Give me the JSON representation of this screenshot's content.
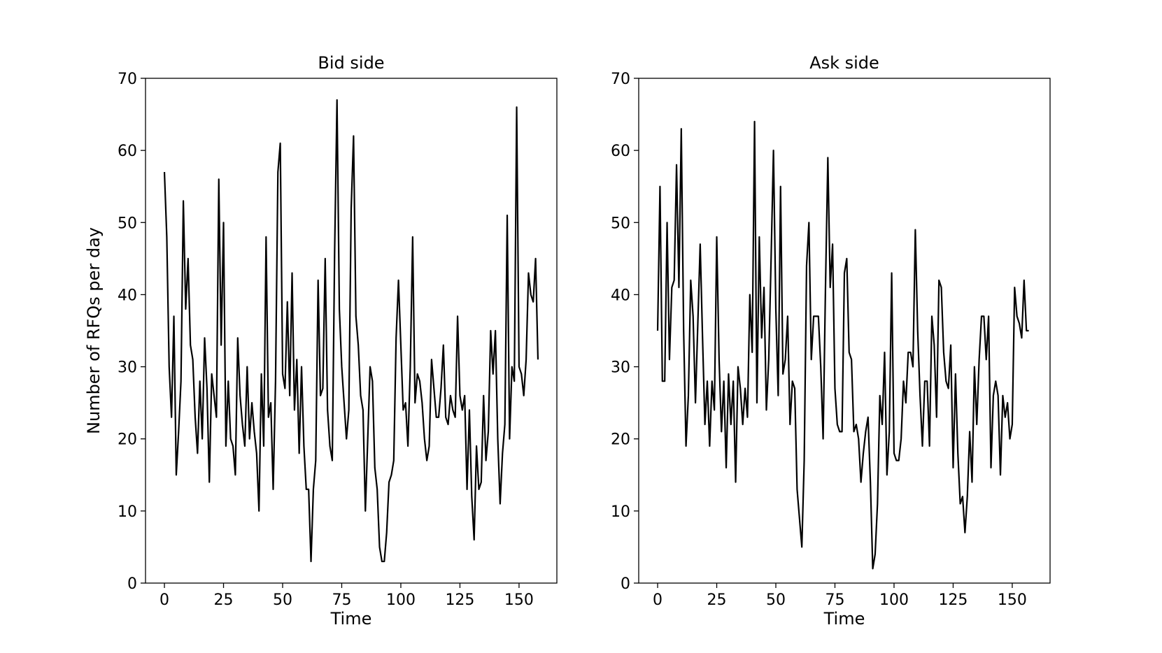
{
  "chart_data": [
    {
      "type": "line",
      "title": "Bid side",
      "xlabel": "Time",
      "ylabel": "Number of RFQs per day",
      "xlim": [
        -8,
        166
      ],
      "ylim": [
        0,
        70
      ],
      "xticks": [
        0,
        25,
        50,
        75,
        100,
        125,
        150
      ],
      "yticks": [
        0,
        10,
        20,
        30,
        40,
        50,
        60,
        70
      ],
      "grid": false,
      "color": "#000000",
      "series": [
        {
          "x_start": 0,
          "values": [
            57,
            48,
            30,
            23,
            37,
            15,
            21,
            28,
            53,
            38,
            45,
            33,
            31,
            23,
            18,
            28,
            20,
            34,
            27,
            14,
            29,
            26,
            23,
            56,
            33,
            50,
            19,
            28,
            20,
            19,
            15,
            34,
            26,
            22,
            19,
            30,
            20,
            25,
            21,
            18,
            10,
            29,
            19,
            48,
            23,
            25,
            13,
            28,
            57,
            61,
            29,
            27,
            39,
            26,
            43,
            24,
            31,
            18,
            30,
            19,
            13,
            13,
            3,
            13,
            17,
            42,
            26,
            27,
            45,
            24,
            19,
            17,
            46,
            67,
            38,
            30,
            25,
            20,
            24,
            52,
            62,
            37,
            33,
            26,
            24,
            10,
            20,
            30,
            28,
            16,
            13,
            5,
            3,
            3,
            7,
            14,
            15,
            17,
            34,
            42,
            33,
            24,
            25,
            19,
            30,
            48,
            25,
            29,
            28,
            25,
            20,
            17,
            19,
            31,
            27,
            23,
            23,
            27,
            33,
            23,
            22,
            26,
            24,
            23,
            37,
            26,
            24,
            26,
            13,
            24,
            12,
            6,
            19,
            13,
            14,
            26,
            17,
            21,
            35,
            29,
            35,
            20,
            11,
            18,
            22,
            51,
            20,
            30,
            28,
            66,
            30,
            29,
            26,
            31,
            43,
            40,
            39,
            45,
            31
          ]
        }
      ]
    },
    {
      "type": "line",
      "title": "Ask side",
      "xlabel": "Time",
      "ylabel": "",
      "xlim": [
        -8,
        166
      ],
      "ylim": [
        0,
        70
      ],
      "xticks": [
        0,
        25,
        50,
        75,
        100,
        125,
        150
      ],
      "yticks": [
        0,
        10,
        20,
        30,
        40,
        50,
        60,
        70
      ],
      "grid": false,
      "color": "#000000",
      "series": [
        {
          "x_start": 0,
          "values": [
            35,
            55,
            28,
            28,
            50,
            31,
            41,
            42,
            58,
            41,
            63,
            35,
            19,
            26,
            42,
            37,
            25,
            36,
            47,
            34,
            22,
            28,
            19,
            28,
            24,
            48,
            31,
            21,
            28,
            16,
            29,
            22,
            28,
            14,
            30,
            27,
            22,
            27,
            23,
            40,
            32,
            64,
            25,
            48,
            34,
            41,
            24,
            31,
            45,
            60,
            38,
            26,
            55,
            29,
            31,
            37,
            22,
            28,
            27,
            13,
            9,
            5,
            17,
            44,
            50,
            31,
            37,
            37,
            37,
            30,
            20,
            41,
            59,
            41,
            47,
            27,
            22,
            21,
            21,
            43,
            45,
            32,
            31,
            21,
            22,
            20,
            14,
            18,
            21,
            23,
            14,
            2,
            4,
            11,
            26,
            22,
            32,
            15,
            21,
            43,
            18,
            17,
            17,
            20,
            28,
            25,
            32,
            32,
            30,
            49,
            35,
            26,
            19,
            28,
            28,
            19,
            37,
            33,
            23,
            42,
            41,
            32,
            28,
            27,
            33,
            16,
            29,
            18,
            11,
            12,
            7,
            12,
            21,
            14,
            30,
            22,
            31,
            37,
            37,
            31,
            37,
            16,
            26,
            28,
            26,
            15,
            26,
            23,
            25,
            20,
            22,
            41,
            37,
            36,
            34,
            42,
            35,
            35
          ]
        }
      ]
    }
  ]
}
